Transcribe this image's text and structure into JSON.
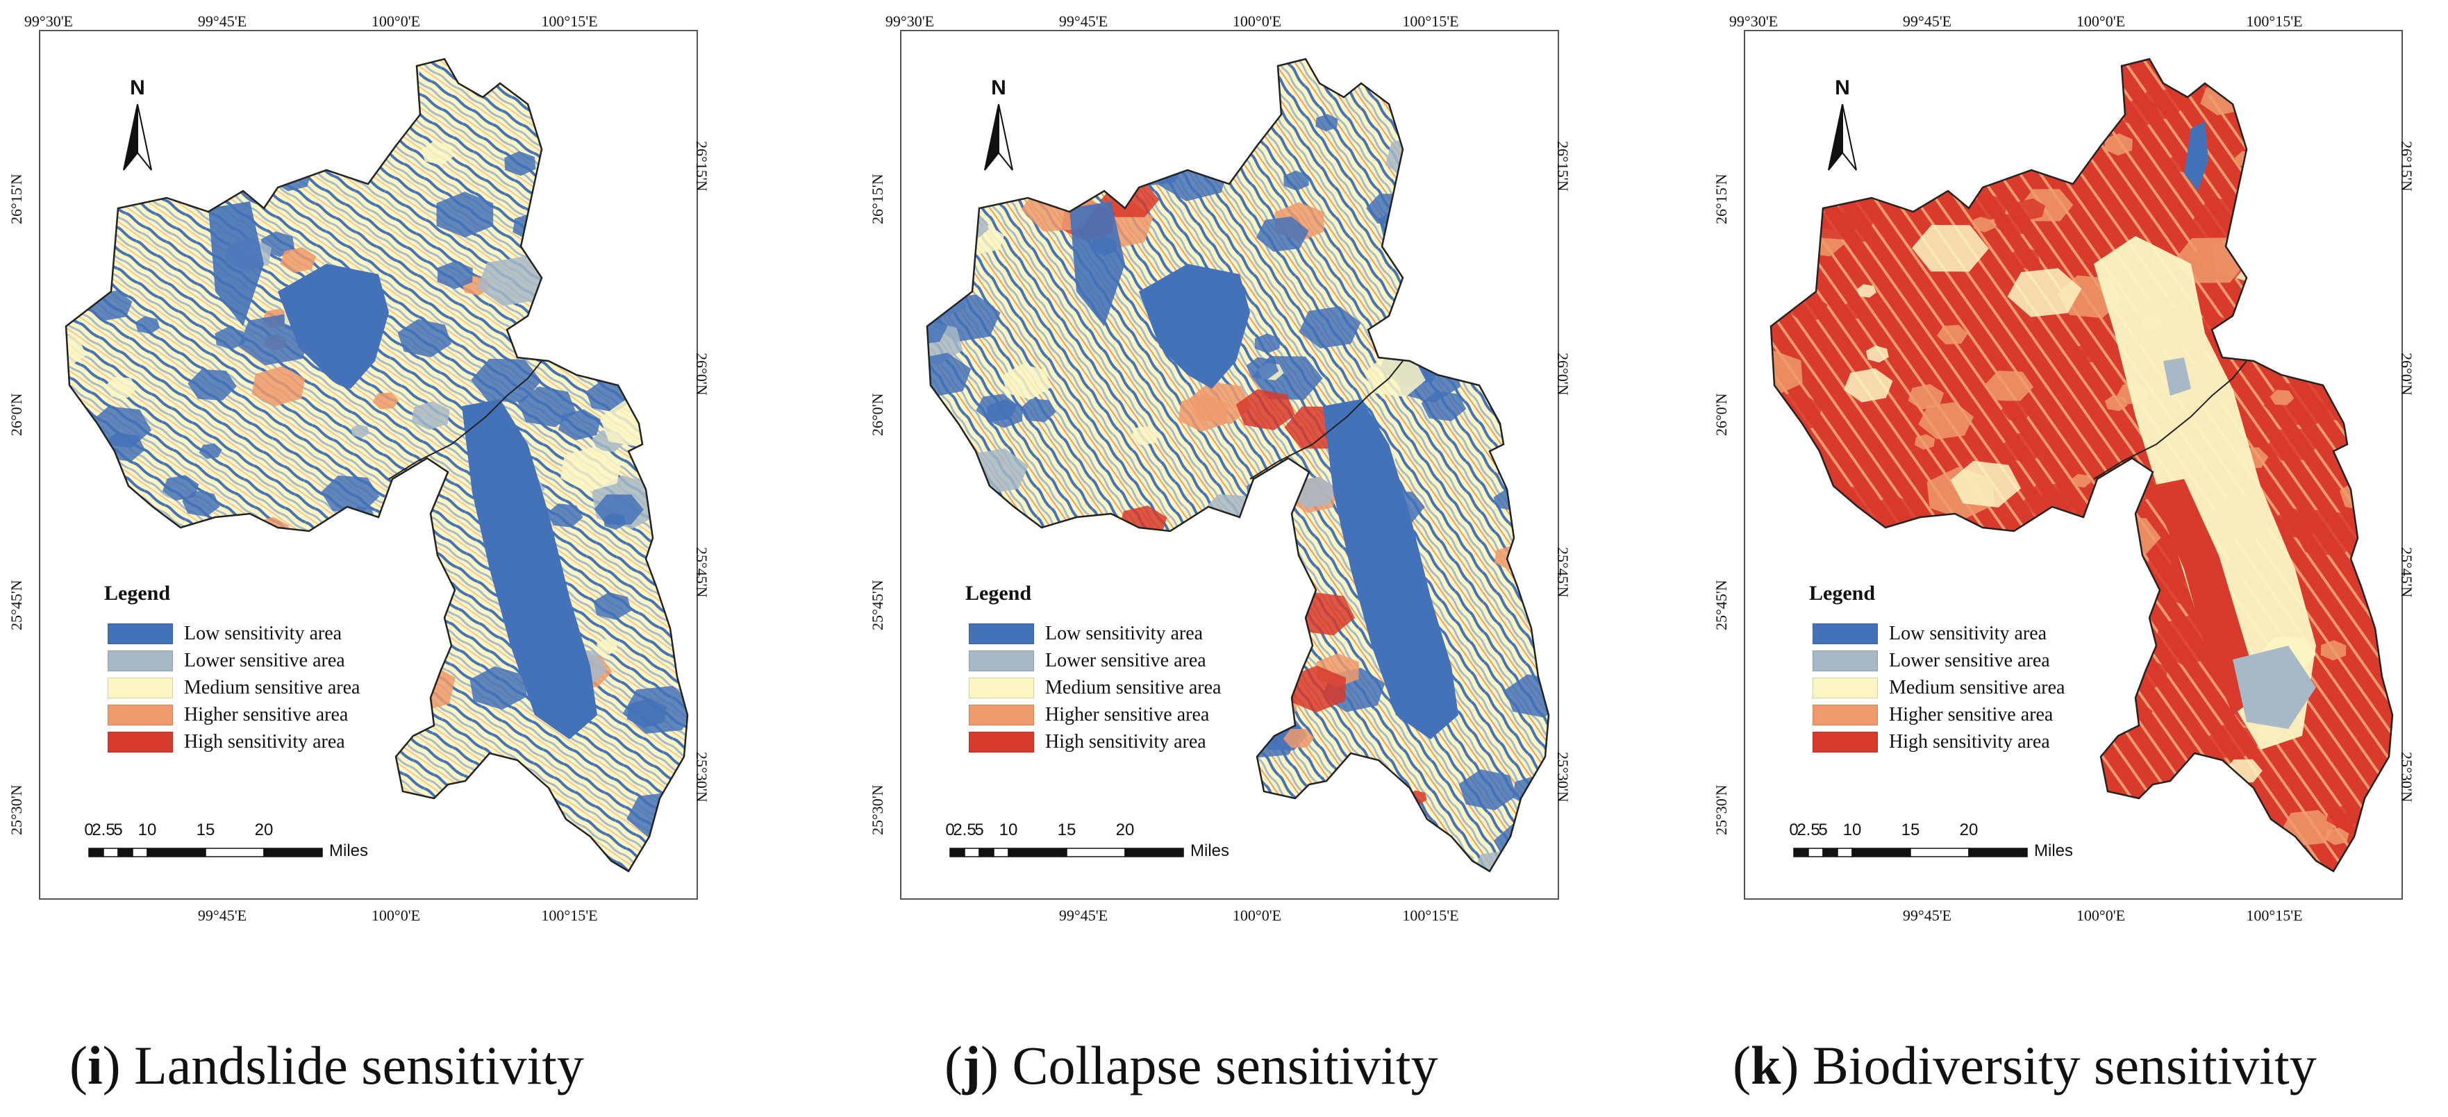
{
  "legend": {
    "title": "Legend",
    "items": [
      {
        "label": "Low sensitivity area",
        "color": "#4472b8"
      },
      {
        "label": "Lower sensitive area",
        "color": "#a7b9c7"
      },
      {
        "label": "Medium sensitive area",
        "color": "#fbf6c4"
      },
      {
        "label": "Higher sensitive area",
        "color": "#ee9a6c"
      },
      {
        "label": "High sensitivity area",
        "color": "#d83a2c"
      }
    ]
  },
  "graticule": {
    "top": [
      "99°30'E",
      "99°45'E",
      "100°0'E",
      "100°15'E"
    ],
    "bottom": [
      "99°45'E",
      "100°0'E",
      "100°15'E"
    ],
    "left": [
      "26°15'N",
      "26°0'N",
      "25°45'N",
      "25°30'N"
    ],
    "right": [
      "26°15'N",
      "26°0'N",
      "25°45'N",
      "25°30'N"
    ]
  },
  "north_arrow": {
    "label": "N"
  },
  "scale_bar": {
    "ticks": [
      "0",
      "2.5",
      "5",
      "10",
      "15",
      "20"
    ],
    "unit": "Miles"
  },
  "panels": [
    {
      "letter": "i",
      "caption": "Landslide sensitivity"
    },
    {
      "letter": "j",
      "caption": "Collapse sensitivity"
    },
    {
      "letter": "k",
      "caption": "Biodiversity sensitivity"
    }
  ]
}
